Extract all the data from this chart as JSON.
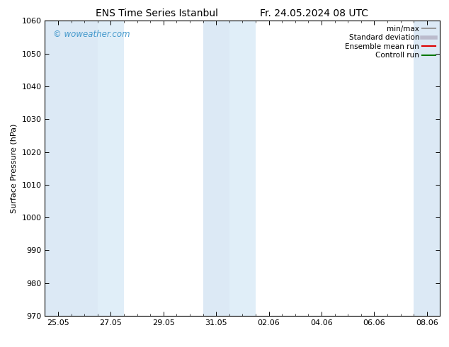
{
  "title_left": "ENS Time Series Istanbul",
  "title_right": "Fr. 24.05.2024 08 UTC",
  "ylabel": "Surface Pressure (hPa)",
  "ylim": [
    970,
    1060
  ],
  "yticks": [
    970,
    980,
    990,
    1000,
    1010,
    1020,
    1030,
    1040,
    1050,
    1060
  ],
  "xtick_labels": [
    "25.05",
    "27.05",
    "29.05",
    "31.05",
    "02.06",
    "04.06",
    "06.06",
    "08.06"
  ],
  "x_min": 24.0,
  "x_max": 40.0,
  "background_color": "#ffffff",
  "plot_bg_color": "#ffffff",
  "shaded_bands": [
    {
      "x_start": 24.0,
      "x_end": 26.0,
      "color": "#dce9f5"
    },
    {
      "x_start": 26.0,
      "x_end": 27.0,
      "color": "#e8f2fb"
    },
    {
      "x_start": 30.5,
      "x_end": 32.5,
      "color": "#dce9f5"
    },
    {
      "x_start": 32.5,
      "x_end": 33.5,
      "color": "#e8f2fb"
    },
    {
      "x_start": 38.5,
      "x_end": 40.0,
      "color": "#dce9f5"
    }
  ],
  "watermark_text": "© woweather.com",
  "watermark_color": "#4499cc",
  "legend_entries": [
    {
      "label": "min/max",
      "color": "#999999",
      "linewidth": 1.5
    },
    {
      "label": "Standard deviation",
      "color": "#bbbbcc",
      "linewidth": 4
    },
    {
      "label": "Ensemble mean run",
      "color": "#dd0000",
      "linewidth": 1.5
    },
    {
      "label": "Controll run",
      "color": "#007700",
      "linewidth": 1.5
    }
  ],
  "title_fontsize": 10,
  "tick_fontsize": 8,
  "ylabel_fontsize": 8,
  "legend_fontsize": 7.5
}
